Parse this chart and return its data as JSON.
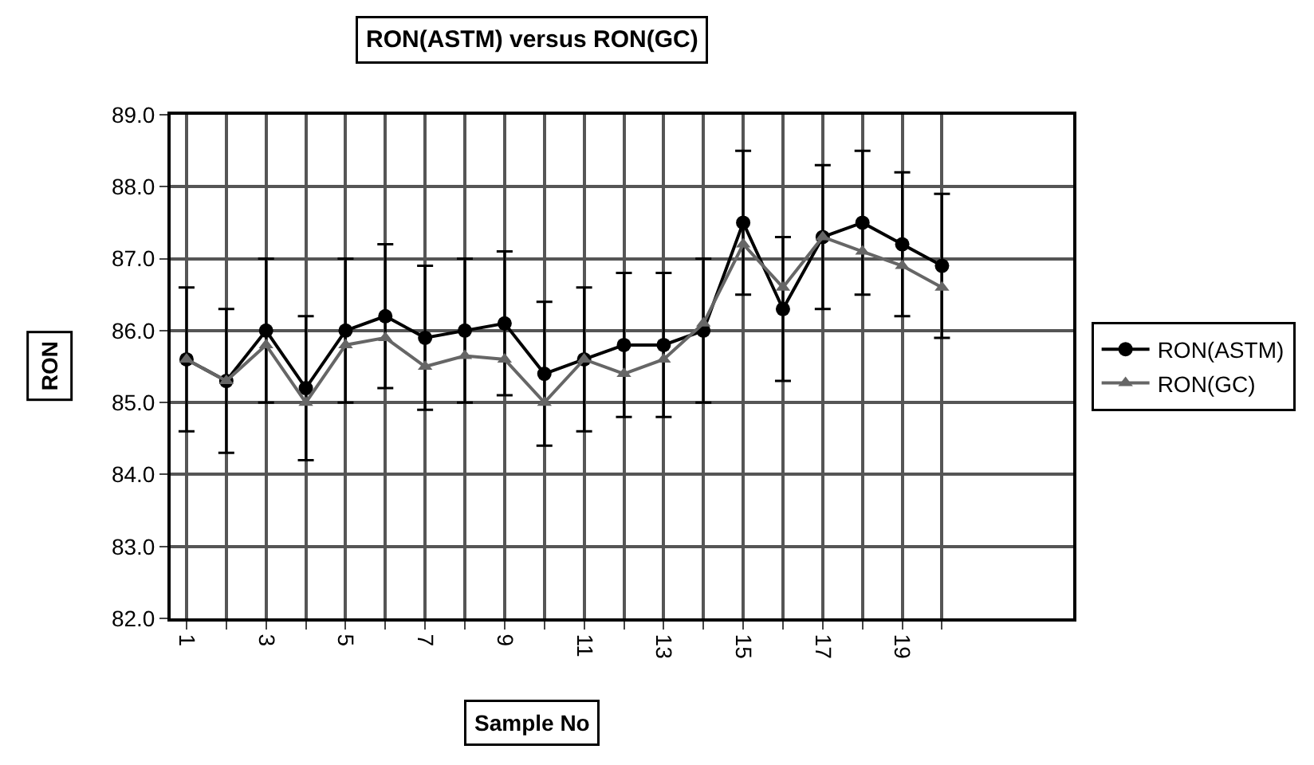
{
  "chart_data": {
    "type": "line",
    "title": "RON(ASTM) versus RON(GC)",
    "xlabel": "Sample No",
    "ylabel": "RON",
    "x": [
      1,
      2,
      3,
      4,
      5,
      6,
      7,
      8,
      9,
      10,
      11,
      12,
      13,
      14,
      15,
      16,
      17,
      18,
      19,
      20
    ],
    "series": [
      {
        "name": "RON(ASTM)",
        "color": "#000000",
        "marker": "circle",
        "values": [
          85.6,
          85.3,
          86.0,
          85.2,
          86.0,
          86.2,
          85.9,
          86.0,
          86.1,
          85.4,
          85.6,
          85.8,
          85.8,
          86.0,
          87.5,
          86.3,
          87.3,
          87.5,
          87.2,
          86.9
        ],
        "errors": [
          1.0,
          1.0,
          1.0,
          1.0,
          1.0,
          1.0,
          1.0,
          1.0,
          1.0,
          1.0,
          1.0,
          1.0,
          1.0,
          1.0,
          1.0,
          1.0,
          1.0,
          1.0,
          1.0,
          1.0
        ]
      },
      {
        "name": "RON(GC)",
        "color": "#666666",
        "marker": "triangle",
        "values": [
          85.6,
          85.3,
          85.8,
          85.0,
          85.8,
          85.9,
          85.5,
          85.65,
          85.6,
          85.0,
          85.6,
          85.4,
          85.6,
          86.1,
          87.2,
          86.6,
          87.3,
          87.1,
          86.9,
          86.6
        ]
      }
    ],
    "xlim": [
      0.6,
      23.3
    ],
    "xticks": [
      1,
      {
        "value": 2,
        "label": null
      },
      3,
      {
        "value": 4,
        "label": null
      },
      5,
      {
        "value": 6,
        "label": null
      },
      7,
      {
        "value": 8,
        "label": null
      },
      9,
      {
        "value": 10,
        "label": null
      },
      11,
      {
        "value": 12,
        "label": null
      },
      13,
      {
        "value": 14,
        "label": null
      },
      15,
      {
        "value": 16,
        "label": null
      },
      17,
      {
        "value": 18,
        "label": null
      },
      19,
      {
        "value": 20,
        "label": null
      }
    ],
    "ylim": [
      82.0,
      89.0
    ],
    "yticks": [
      {
        "value": 82,
        "label": "82.0"
      },
      {
        "value": 83,
        "label": "83.0"
      },
      {
        "value": 84,
        "label": "84.0"
      },
      {
        "value": 85,
        "label": "85.0"
      },
      {
        "value": 86,
        "label": "86.0"
      },
      {
        "value": 87,
        "label": "87.0"
      },
      {
        "value": 88,
        "label": "88.0"
      },
      {
        "value": 89,
        "label": "89.0"
      }
    ],
    "grid": true,
    "legend": "right",
    "line_style": "solid"
  }
}
